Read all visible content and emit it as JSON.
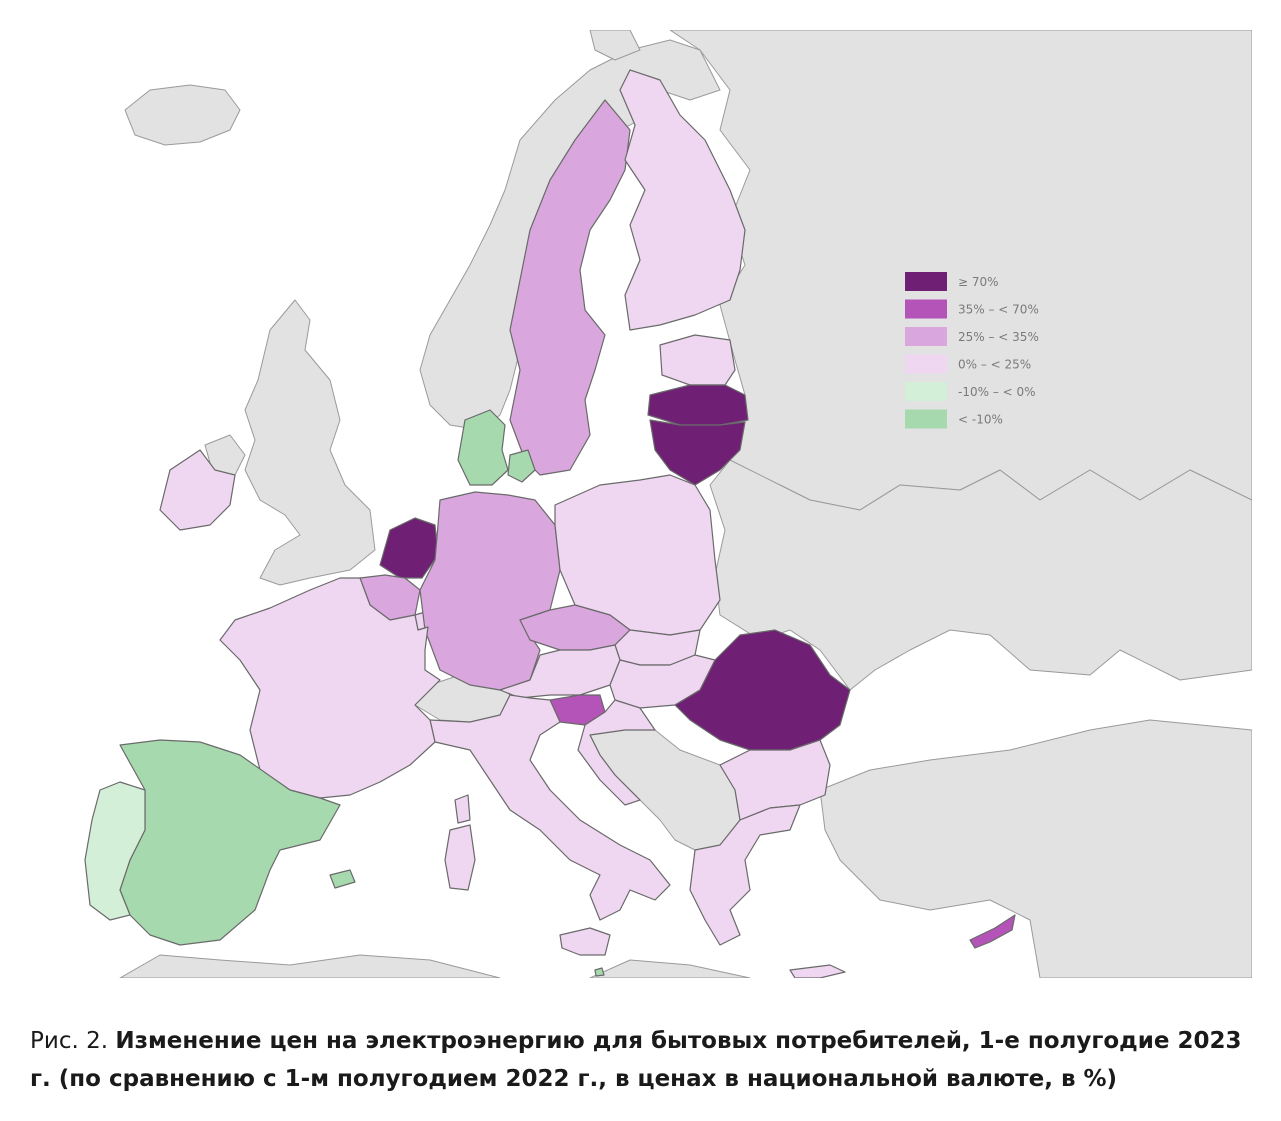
{
  "colors": {
    "sea": "#ffffff",
    "land_nonmember": "#e2e2e2",
    "border": "#6a6a6a",
    "ge70": "#6f1f74",
    "c35_70": "#b453b8",
    "c25_35": "#d9a6de",
    "c0_25": "#efd6f1",
    "cm10_0": "#d3efd8",
    "clt_m10": "#a7d9ae"
  },
  "legend": [
    {
      "key": "ge70",
      "label": "≥ 70%",
      "color": "#6f1f74"
    },
    {
      "key": "c35_70",
      "label": "35% – < 70%",
      "color": "#b453b8"
    },
    {
      "key": "c25_35",
      "label": "25% – < 35%",
      "color": "#d9a6de"
    },
    {
      "key": "c0_25",
      "label": "0% – < 25%",
      "color": "#efd6f1"
    },
    {
      "key": "cm10_0",
      "label": "-10% – < 0%",
      "color": "#d3efd8"
    },
    {
      "key": "clt_m10",
      "label": "< -10%",
      "color": "#a7d9ae"
    }
  ],
  "countries": [
    {
      "name": "Sweden",
      "class": "c25_35"
    },
    {
      "name": "Finland",
      "class": "c0_25"
    },
    {
      "name": "Estonia",
      "class": "c0_25"
    },
    {
      "name": "Latvia",
      "class": "ge70"
    },
    {
      "name": "Lithuania",
      "class": "ge70"
    },
    {
      "name": "Denmark",
      "class": "clt_m10"
    },
    {
      "name": "Ireland",
      "class": "c0_25"
    },
    {
      "name": "Netherlands",
      "class": "ge70"
    },
    {
      "name": "Belgium",
      "class": "c25_35"
    },
    {
      "name": "Luxembourg",
      "class": "c0_25"
    },
    {
      "name": "Germany",
      "class": "c25_35"
    },
    {
      "name": "Poland",
      "class": "c0_25"
    },
    {
      "name": "Czechia",
      "class": "c25_35"
    },
    {
      "name": "Slovakia",
      "class": "c0_25"
    },
    {
      "name": "Austria",
      "class": "c0_25"
    },
    {
      "name": "Hungary",
      "class": "c0_25"
    },
    {
      "name": "Slovenia",
      "class": "c35_70"
    },
    {
      "name": "Croatia",
      "class": "c0_25"
    },
    {
      "name": "Romania",
      "class": "ge70"
    },
    {
      "name": "Bulgaria",
      "class": "c0_25"
    },
    {
      "name": "Greece",
      "class": "c0_25"
    },
    {
      "name": "Cyprus",
      "class": "c35_70"
    },
    {
      "name": "Italy",
      "class": "c0_25"
    },
    {
      "name": "France",
      "class": "c0_25"
    },
    {
      "name": "Spain",
      "class": "clt_m10"
    },
    {
      "name": "Portugal",
      "class": "cm10_0"
    },
    {
      "name": "Malta",
      "class": "clt_m10"
    }
  ],
  "caption": {
    "prefix": "Рис. 2. ",
    "title": "Изменение цен на электроэнергию для бытовых потребителей, 1-е полугодие 2023 г. (по сравнению с 1-м полугодием 2022 г., в ценах в национальной валюте, в %)"
  }
}
